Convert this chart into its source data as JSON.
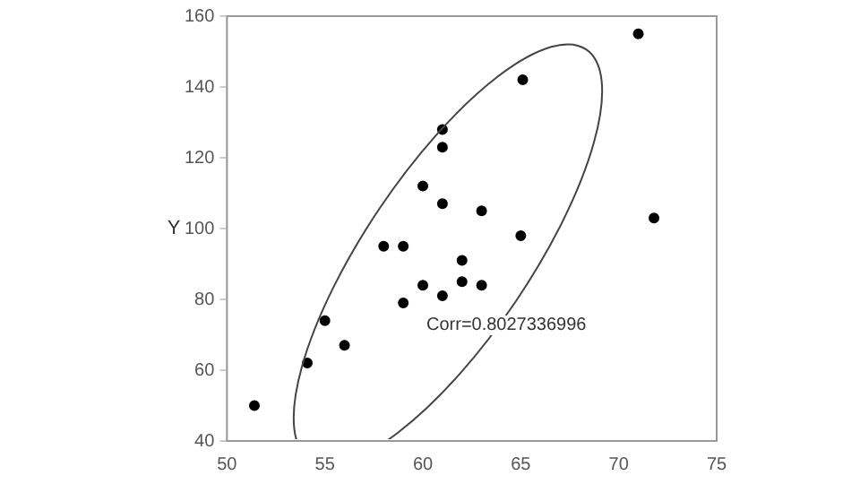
{
  "chart_data": {
    "type": "scatter",
    "ylabel": "Y",
    "x": [
      71.0,
      65.1,
      61.0,
      61.0,
      60.0,
      61.0,
      63.0,
      71.8,
      65.0,
      58.0,
      59.0,
      62.0,
      60.0,
      62.0,
      63.0,
      61.0,
      59.0,
      55.0,
      56.0,
      54.1,
      51.4
    ],
    "values": [
      155,
      142,
      128,
      123,
      112,
      107,
      105,
      103,
      98,
      95,
      95,
      91,
      84,
      85,
      84,
      81,
      79,
      74,
      67,
      62,
      50
    ],
    "color": "#000000",
    "marker": "circle",
    "xlim": [
      50,
      75
    ],
    "xticks": [
      50,
      55,
      60,
      65,
      70,
      75
    ],
    "ylim": [
      40,
      160
    ],
    "yticks": [
      40,
      60,
      80,
      100,
      120,
      140,
      160
    ],
    "grid": false,
    "legend": false,
    "annotations": [
      "Corr=0.8027336996"
    ]
  }
}
